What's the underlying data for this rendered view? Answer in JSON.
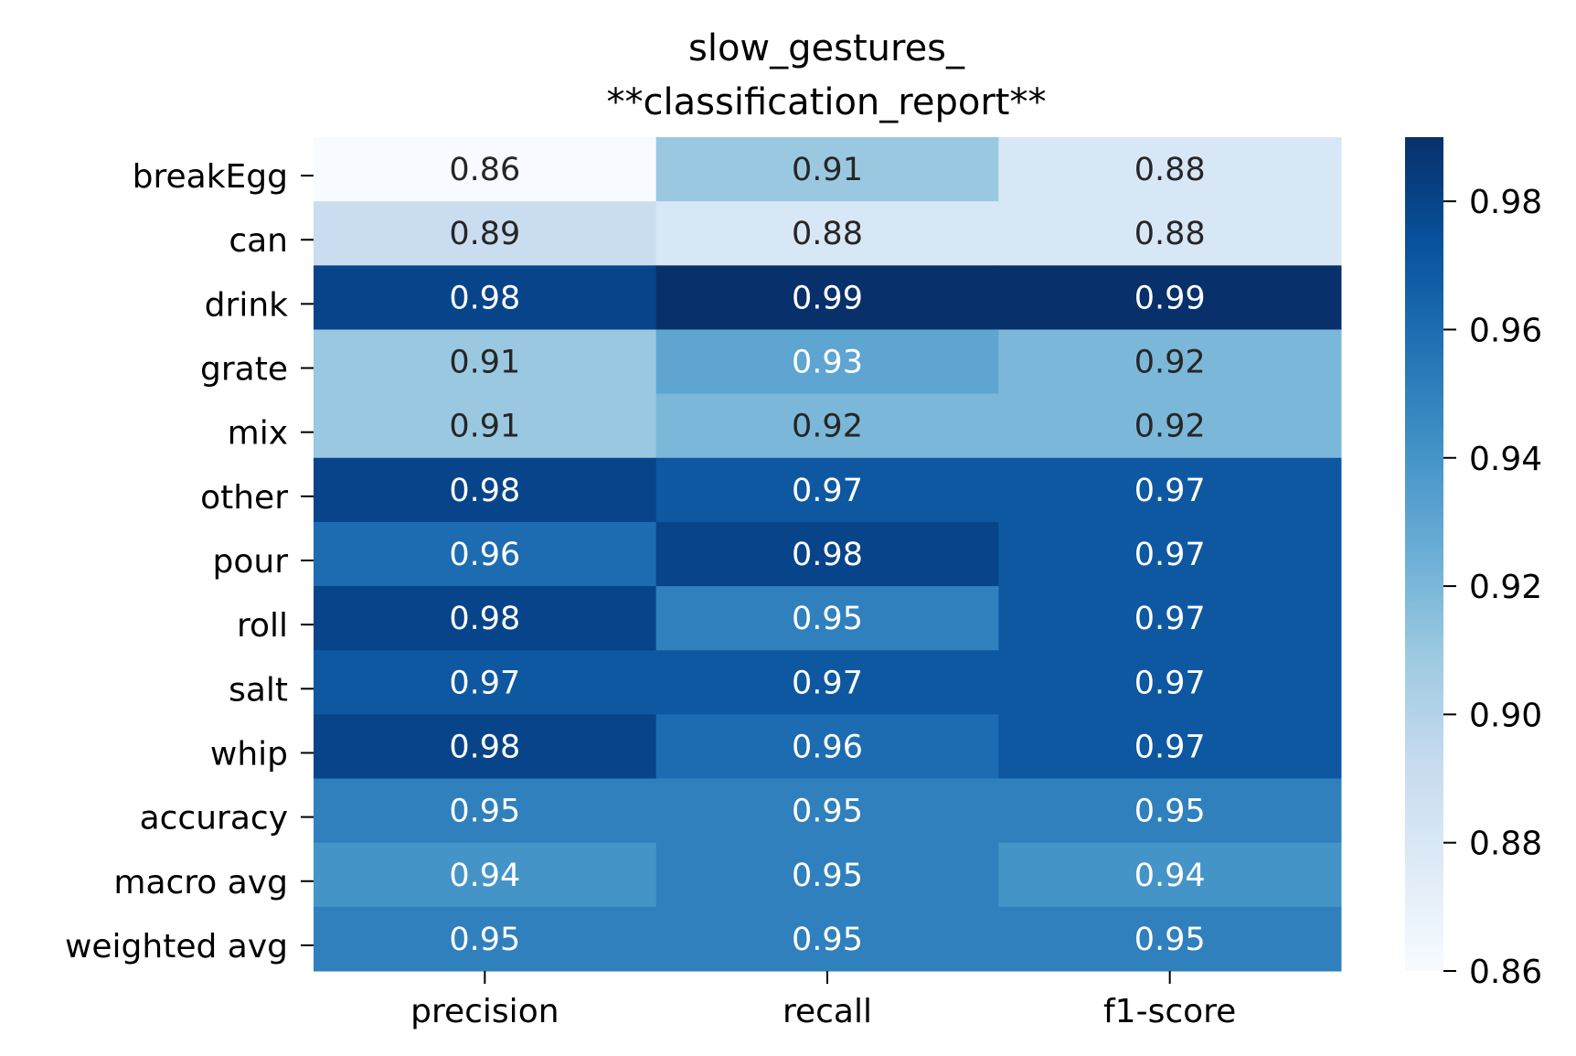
{
  "chart_data": {
    "type": "heatmap",
    "title_lines": [
      "slow_gestures_",
      "**classification_report**"
    ],
    "columns": [
      "precision",
      "recall",
      "f1-score"
    ],
    "rows": [
      "breakEgg",
      "can",
      "drink",
      "grate",
      "mix",
      "other",
      "pour",
      "roll",
      "salt",
      "whip",
      "accuracy",
      "macro avg",
      "weighted avg"
    ],
    "values": [
      [
        0.86,
        0.91,
        0.88
      ],
      [
        0.89,
        0.88,
        0.88
      ],
      [
        0.98,
        0.99,
        0.99
      ],
      [
        0.91,
        0.93,
        0.92
      ],
      [
        0.91,
        0.92,
        0.92
      ],
      [
        0.98,
        0.97,
        0.97
      ],
      [
        0.96,
        0.98,
        0.97
      ],
      [
        0.98,
        0.95,
        0.97
      ],
      [
        0.97,
        0.97,
        0.97
      ],
      [
        0.98,
        0.96,
        0.97
      ],
      [
        0.95,
        0.95,
        0.95
      ],
      [
        0.94,
        0.95,
        0.94
      ],
      [
        0.95,
        0.95,
        0.95
      ]
    ],
    "colormap": "Blues",
    "vmin": 0.86,
    "vmax": 0.99,
    "colorbar_ticks": [
      "0.86",
      "0.88",
      "0.90",
      "0.92",
      "0.94",
      "0.96",
      "0.98"
    ],
    "colors": {
      "blues": [
        "#f7fbff",
        "#deebf7",
        "#c6dbef",
        "#9ecae1",
        "#6baed6",
        "#4292c6",
        "#2171b5",
        "#08519c",
        "#08306b"
      ],
      "dark_text": "#262626",
      "light_text": "#ffffff"
    }
  }
}
